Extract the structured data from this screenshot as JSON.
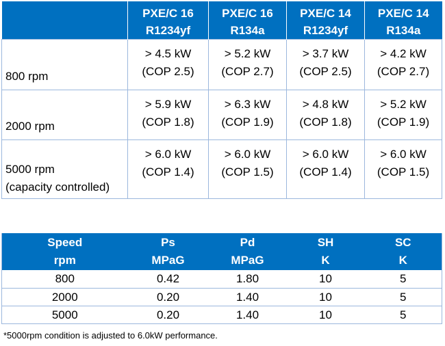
{
  "capacity_table": {
    "columns": [
      {
        "model": "PXE/C 16",
        "refrigerant": "R1234yf"
      },
      {
        "model": "PXE/C 16",
        "refrigerant": "R134a"
      },
      {
        "model": "PXE/C 14",
        "refrigerant": "R1234yf"
      },
      {
        "model": "PXE/C 14",
        "refrigerant": "R134a"
      }
    ],
    "rows": [
      {
        "label": "800 rpm",
        "sublabel": "",
        "cells": [
          {
            "power": "> 4.5 kW",
            "cop": "(COP 2.5)"
          },
          {
            "power": "> 5.2 kW",
            "cop": "(COP 2.7)"
          },
          {
            "power": "> 3.7 kW",
            "cop": "(COP 2.5)"
          },
          {
            "power": "> 4.2 kW",
            "cop": "(COP 2.7)"
          }
        ]
      },
      {
        "label": "2000 rpm",
        "sublabel": "",
        "cells": [
          {
            "power": "> 5.9 kW",
            "cop": "(COP 1.8)"
          },
          {
            "power": "> 6.3 kW",
            "cop": "(COP 1.9)"
          },
          {
            "power": "> 4.8 kW",
            "cop": "(COP 1.8)"
          },
          {
            "power": "> 5.2 kW",
            "cop": "(COP 1.9)"
          }
        ]
      },
      {
        "label": "5000 rpm",
        "sublabel": "(capacity controlled)",
        "cells": [
          {
            "power": "> 6.0 kW",
            "cop": "(COP 1.4)"
          },
          {
            "power": "> 6.0 kW",
            "cop": "(COP 1.5)"
          },
          {
            "power": "> 6.0 kW",
            "cop": "(COP 1.4)"
          },
          {
            "power": "> 6.0 kW",
            "cop": "(COP 1.5)"
          }
        ]
      }
    ]
  },
  "condition_table": {
    "headers": [
      {
        "name": "Speed",
        "unit": "rpm"
      },
      {
        "name": "Ps",
        "unit": "MPaG"
      },
      {
        "name": "Pd",
        "unit": "MPaG"
      },
      {
        "name": "SH",
        "unit": "K"
      },
      {
        "name": "SC",
        "unit": "K"
      }
    ],
    "rows": [
      [
        "800",
        "0.42",
        "1.80",
        "10",
        "5"
      ],
      [
        "2000",
        "0.20",
        "1.40",
        "10",
        "5"
      ],
      [
        "5000",
        "0.20",
        "1.40",
        "10",
        "5"
      ]
    ]
  },
  "footnote": "*5000rpm condition is adjusted to 6.0kW performance.",
  "colors": {
    "header_bg": "#0070c0",
    "header_text": "#ffffff",
    "border": "#9bb7dd"
  }
}
